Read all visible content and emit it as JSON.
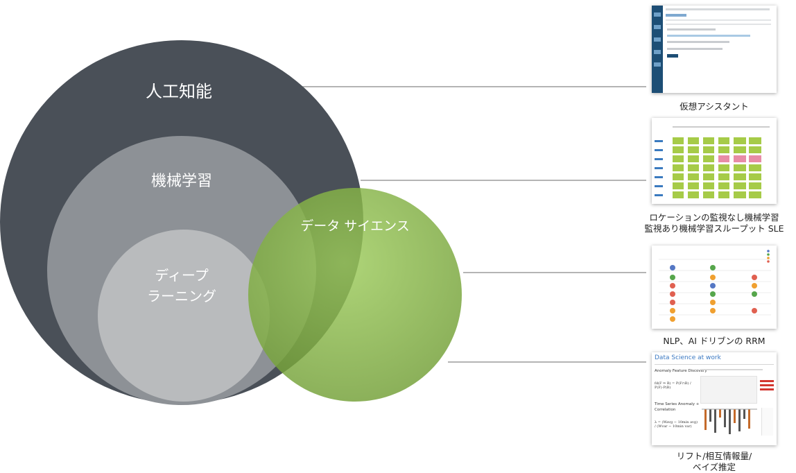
{
  "venn": {
    "ai": "人工知能",
    "ml": "機械学習",
    "dl_line1": "ディープ",
    "dl_line2": "ラーニング",
    "ds": "データ サイエンス"
  },
  "colors": {
    "ai": "#4a5058",
    "ml": "#8d9196",
    "dl": "#b9bbbd",
    "ds": "#7fae3f",
    "grid_green": "#a6cb48",
    "grid_pink": "#e88ca6"
  },
  "examples": [
    {
      "caption_lines": [
        "仮想アシスタント"
      ]
    },
    {
      "caption_lines": [
        "ロケーションの監視なし機械学習",
        "監視あり機械学習スループット SLE"
      ]
    },
    {
      "caption_lines": [
        "NLP、AI ドリブンの RRM"
      ]
    },
    {
      "caption_lines": [
        "リフト/相互情報量/",
        "ベイズ推定"
      ]
    }
  ],
  "thumb4": {
    "title": "Data Science at work",
    "anomaly": "Anomaly Feature Discovery",
    "formula1": "fd(F ⇒ B) = P(F∩B) / P(F)·P(B)",
    "timeseries_line1": "Time Series Anomaly +",
    "timeseries_line2": "Correlation",
    "formula2": "λ = (Wavg − 10min avg) / (Wvar − 10min var)"
  }
}
